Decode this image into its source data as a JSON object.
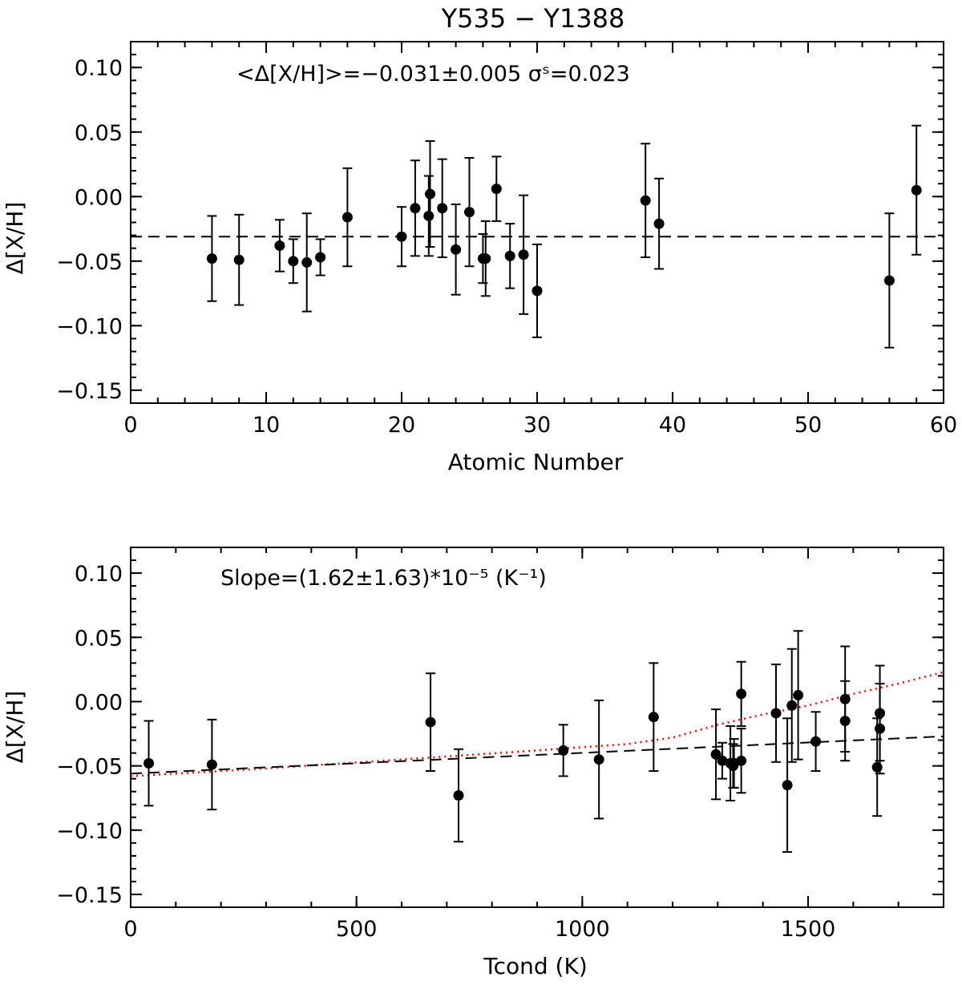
{
  "chart_data": [
    {
      "type": "scatter",
      "title": "Y535 − Y1388",
      "xlabel": "Atomic Number",
      "ylabel": "Δ[X/H]",
      "xlim": [
        0,
        60
      ],
      "ylim": [
        -0.16,
        0.12
      ],
      "xticks": [
        0,
        10,
        20,
        30,
        40,
        50,
        60
      ],
      "xtick_labels": [
        "0",
        "10",
        "20",
        "30",
        "40",
        "50",
        "60"
      ],
      "yticks": [
        -0.15,
        -0.1,
        -0.05,
        0.0,
        0.05,
        0.1
      ],
      "ytick_labels": [
        "−0.15",
        "−0.10",
        "−0.05",
        "0.00",
        "0.05",
        "0.10"
      ],
      "annotation": "<Δ[X/H]>=−0.031±0.005 σˢ=0.023",
      "mean_line": -0.031,
      "points": [
        {
          "x": 6,
          "y": -0.048,
          "err": 0.033
        },
        {
          "x": 8,
          "y": -0.049,
          "err": 0.035
        },
        {
          "x": 11,
          "y": -0.038,
          "err": 0.02
        },
        {
          "x": 12,
          "y": -0.05,
          "err": 0.017
        },
        {
          "x": 13,
          "y": -0.051,
          "err": 0.038
        },
        {
          "x": 14,
          "y": -0.047,
          "err": 0.014
        },
        {
          "x": 16,
          "y": -0.016,
          "err": 0.038
        },
        {
          "x": 20,
          "y": -0.031,
          "err": 0.023
        },
        {
          "x": 21,
          "y": -0.009,
          "err": 0.037
        },
        {
          "x": 22,
          "y": -0.015,
          "err": 0.031
        },
        {
          "x": 22.1,
          "y": 0.002,
          "err": 0.041
        },
        {
          "x": 23,
          "y": -0.009,
          "err": 0.038
        },
        {
          "x": 24,
          "y": -0.041,
          "err": 0.035
        },
        {
          "x": 25,
          "y": -0.012,
          "err": 0.042
        },
        {
          "x": 26,
          "y": -0.048,
          "err": 0.019
        },
        {
          "x": 26.2,
          "y": -0.048,
          "err": 0.029
        },
        {
          "x": 27,
          "y": 0.006,
          "err": 0.025
        },
        {
          "x": 28,
          "y": -0.046,
          "err": 0.025
        },
        {
          "x": 29,
          "y": -0.045,
          "err": 0.046
        },
        {
          "x": 30,
          "y": -0.073,
          "err": 0.036
        },
        {
          "x": 38,
          "y": -0.003,
          "err": 0.044
        },
        {
          "x": 39,
          "y": -0.021,
          "err": 0.035
        },
        {
          "x": 56,
          "y": -0.065,
          "err": 0.052
        },
        {
          "x": 58,
          "y": 0.005,
          "err": 0.05
        }
      ]
    },
    {
      "type": "scatter",
      "title": "",
      "xlabel": "Tcond (K)",
      "ylabel": "Δ[X/H]",
      "xlim": [
        0,
        1800
      ],
      "ylim": [
        -0.16,
        0.12
      ],
      "xticks": [
        0,
        500,
        1000,
        1500
      ],
      "xtick_labels": [
        "0",
        "500",
        "1000",
        "1500"
      ],
      "yticks": [
        -0.15,
        -0.1,
        -0.05,
        0.0,
        0.05,
        0.1
      ],
      "ytick_labels": [
        "−0.15",
        "−0.10",
        "−0.05",
        "0.00",
        "0.05",
        "0.10"
      ],
      "annotation": "Slope=(1.62±1.63)*10⁻⁵ (K⁻¹)",
      "fit_line": {
        "x": [
          0,
          1800
        ],
        "y": [
          -0.056,
          -0.027
        ]
      },
      "trend_line": {
        "x": [
          0,
          300,
          600,
          900,
          1100,
          1200,
          1300,
          1400,
          1500,
          1600,
          1700,
          1800
        ],
        "y": [
          -0.058,
          -0.052,
          -0.045,
          -0.038,
          -0.033,
          -0.028,
          -0.018,
          -0.01,
          -0.003,
          0.006,
          0.014,
          0.023
        ]
      },
      "points": [
        {
          "x": 40,
          "y": -0.048,
          "err": 0.033
        },
        {
          "x": 180,
          "y": -0.049,
          "err": 0.035
        },
        {
          "x": 664,
          "y": -0.016,
          "err": 0.038
        },
        {
          "x": 726,
          "y": -0.073,
          "err": 0.036
        },
        {
          "x": 958,
          "y": -0.038,
          "err": 0.02
        },
        {
          "x": 1037,
          "y": -0.045,
          "err": 0.046
        },
        {
          "x": 1158,
          "y": -0.012,
          "err": 0.042
        },
        {
          "x": 1296,
          "y": -0.041,
          "err": 0.035
        },
        {
          "x": 1310,
          "y": -0.046,
          "err": 0.014
        },
        {
          "x": 1328,
          "y": -0.048,
          "err": 0.029
        },
        {
          "x": 1334,
          "y": -0.05,
          "err": 0.017
        },
        {
          "x": 1336,
          "y": -0.048,
          "err": 0.019
        },
        {
          "x": 1352,
          "y": 0.006,
          "err": 0.025
        },
        {
          "x": 1352,
          "y": -0.046,
          "err": 0.025
        },
        {
          "x": 1429,
          "y": -0.009,
          "err": 0.038
        },
        {
          "x": 1454,
          "y": -0.065,
          "err": 0.052
        },
        {
          "x": 1464,
          "y": -0.003,
          "err": 0.044
        },
        {
          "x": 1478,
          "y": 0.005,
          "err": 0.05
        },
        {
          "x": 1517,
          "y": -0.031,
          "err": 0.023
        },
        {
          "x": 1582,
          "y": 0.002,
          "err": 0.041
        },
        {
          "x": 1582,
          "y": -0.015,
          "err": 0.031
        },
        {
          "x": 1653,
          "y": -0.051,
          "err": 0.038
        },
        {
          "x": 1659,
          "y": -0.009,
          "err": 0.037
        },
        {
          "x": 1659,
          "y": -0.021,
          "err": 0.035
        }
      ]
    }
  ]
}
